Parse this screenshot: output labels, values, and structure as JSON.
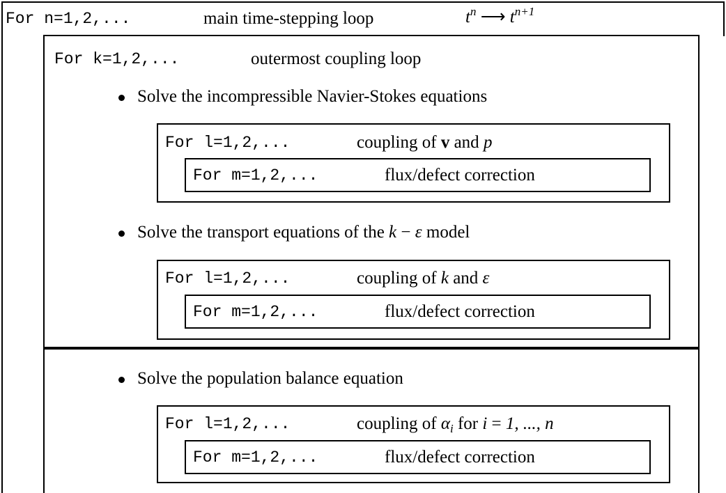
{
  "main_loop": {
    "label": "For n=1,2,...",
    "description": "main time-stepping loop",
    "math": {
      "from_base": "t",
      "from_sup": "n",
      "arrow": "⟶",
      "to_base": "t",
      "to_sup": "n+1"
    }
  },
  "coupling_loop": {
    "label": "For k=1,2,...",
    "description": "outermost coupling loop"
  },
  "steps": [
    {
      "text": [
        "Solve the incompressible Navier-Stokes equations"
      ],
      "inner": {
        "label": "For l=1,2,...",
        "description": [
          "coupling of",
          "v",
          "and",
          "p"
        ]
      },
      "innermost": {
        "label": "For m=1,2,...",
        "description": "flux/defect correction"
      }
    },
    {
      "text": [
        "Solve the transport equations of the",
        "k",
        "−",
        "ε",
        "model"
      ],
      "inner": {
        "label": "For l=1,2,...",
        "description": [
          "coupling of",
          "k",
          "and",
          "ε"
        ]
      },
      "innermost": {
        "label": "For m=1,2,...",
        "description": "flux/defect correction"
      }
    },
    {
      "text": [
        "Solve the population balance equation"
      ],
      "inner": {
        "label": "For l=1,2,...",
        "description": [
          "coupling of",
          "α",
          "i",
          "for",
          "i",
          "=",
          "1, ..., n"
        ]
      },
      "innermost": {
        "label": "For m=1,2,...",
        "description": "flux/defect correction"
      }
    }
  ]
}
